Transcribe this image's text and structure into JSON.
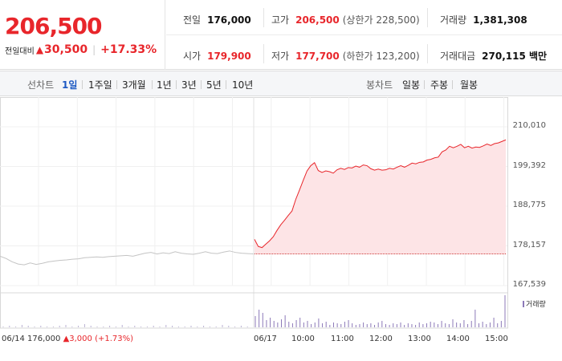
{
  "quote": {
    "price": "206,500",
    "change_label": "전일대비",
    "change_arrow": "▲",
    "change_amount": "30,500",
    "change_rate": "+17.33%",
    "stats": {
      "prev_close_label": "전일",
      "prev_close": "176,000",
      "high_label": "고가",
      "high": "206,500",
      "upper_limit": "(상한가 228,500)",
      "volume_label": "거래량",
      "volume": "1,381,308",
      "open_label": "시가",
      "open": "179,900",
      "low_label": "저가",
      "low": "177,700",
      "lower_limit": "(하한가 123,200)",
      "value_label": "거래대금",
      "value": "270,115 백만"
    }
  },
  "tabs": {
    "line_label": "선차트",
    "line_items": [
      "1일",
      "1주일",
      "3개월",
      "1년",
      "3년",
      "5년",
      "10년"
    ],
    "candle_label": "봉차트",
    "candle_items": [
      "일봉",
      "주봉",
      "월봉"
    ]
  },
  "chart_data": {
    "type": "line",
    "y_ticks": [
      "210,010",
      "199,392",
      "188,775",
      "178,157",
      "167,539"
    ],
    "ylim": [
      167539,
      210010
    ],
    "x_ticks": [
      "06/17",
      "10:00",
      "11:00",
      "12:00",
      "13:00",
      "14:00",
      "15:00"
    ],
    "prev_day": {
      "date": "06/14",
      "close": "176,000",
      "change_arrow": "▲",
      "change": "3,000",
      "rate": "(+1.73%)"
    },
    "volume_legend": "거래량",
    "reference_line": 176000,
    "series": [
      {
        "period": "06/14",
        "values": [
          175400,
          174800,
          173900,
          173300,
          173100,
          173600,
          173200,
          173500,
          173900,
          174100,
          174300,
          174400,
          174600,
          174700,
          175000,
          175100,
          175200,
          175100,
          175300,
          175400,
          175500,
          175600,
          175400,
          175800,
          176200,
          176400,
          176000,
          176300,
          176100,
          176600,
          176200,
          176000,
          175900,
          176200,
          176600,
          176200,
          176100,
          176500,
          176800,
          176400,
          176200,
          176100,
          176000
        ]
      },
      {
        "period": "06/17",
        "values": [
          179900,
          178000,
          177700,
          178600,
          179500,
          180600,
          182300,
          183800,
          185000,
          186300,
          187500,
          190600,
          193100,
          195700,
          198200,
          199600,
          200400,
          198300,
          197800,
          198200,
          198000,
          197600,
          198500,
          198900,
          198600,
          199100,
          199000,
          199500,
          199200,
          199800,
          199600,
          198800,
          198400,
          198700,
          198400,
          198500,
          198900,
          198700,
          199200,
          199600,
          199200,
          199700,
          200300,
          200100,
          200500,
          200600,
          201100,
          201300,
          201700,
          201900,
          203300,
          203800,
          204800,
          204400,
          204800,
          205300,
          204400,
          204800,
          204300,
          204600,
          204500,
          204900,
          205400,
          205000,
          205500,
          205700,
          206100,
          206500
        ]
      }
    ]
  }
}
